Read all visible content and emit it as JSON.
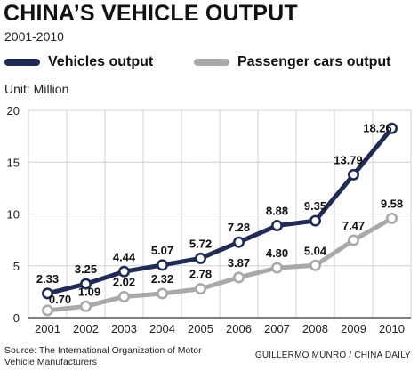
{
  "header": {
    "title": "CHINA’S VEHICLE OUTPUT",
    "subtitle": "2001-2010"
  },
  "legend": [
    {
      "label": "Vehicles output",
      "color": "#1f2b55"
    },
    {
      "label": "Passenger cars output",
      "color": "#a9a9a9"
    }
  ],
  "unit_label": "Unit: Million",
  "footer": {
    "source": "Source: The International Organization of Motor Vehicle Manufacturers",
    "credit": "GUILLERMO MUNRO / CHINA DAILY"
  },
  "chart_data": {
    "type": "line",
    "title": "CHINA’S VEHICLE OUTPUT",
    "subtitle": "2001-2010",
    "ylabel": "Unit: Million",
    "x": [
      "2001",
      "2002",
      "2003",
      "2004",
      "2005",
      "2006",
      "2007",
      "2008",
      "2009",
      "2010"
    ],
    "ylim": [
      0,
      20
    ],
    "yticks": [
      0,
      5,
      10,
      15,
      20
    ],
    "grid": true,
    "legend_position": "top",
    "series": [
      {
        "name": "Vehicles output",
        "color": "#1f2b55",
        "values": [
          2.33,
          3.25,
          4.44,
          5.07,
          5.72,
          7.28,
          8.88,
          9.35,
          13.79,
          18.26
        ],
        "labels": [
          "2.33",
          "3.25",
          "4.44",
          "5.07",
          "5.72",
          "7.28",
          "8.88",
          "9.35",
          "13.79",
          "18.26"
        ]
      },
      {
        "name": "Passenger cars output",
        "color": "#a9a9a9",
        "values": [
          0.7,
          1.09,
          2.02,
          2.32,
          2.78,
          3.87,
          4.8,
          5.04,
          7.47,
          9.58
        ],
        "labels": [
          "0.70",
          "1.09",
          "2.02",
          "2.32",
          "2.78",
          "3.87",
          "4.80",
          "5.04",
          "7.47",
          "9.58"
        ]
      }
    ]
  }
}
